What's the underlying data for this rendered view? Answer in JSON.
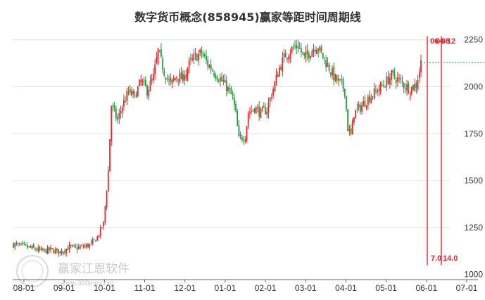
{
  "chart_data": {
    "type": "candlestick",
    "title": "数字货币概念(858945)赢家等距时间周期线",
    "xlabel": "",
    "ylabel": "",
    "ylim": [
      1020,
      2290
    ],
    "y_ticks": [
      1000,
      1250,
      1500,
      1750,
      2000,
      2250
    ],
    "y_tick_labels": [
      "1000",
      "1250",
      "1500",
      "1750",
      "2000",
      "2250"
    ],
    "x_tick_labels": [
      "08-01",
      "09-01",
      "10-01",
      "11-01",
      "12-01",
      "01-01",
      "02-01",
      "03-01",
      "04-01",
      "05-01",
      "06-01",
      "07-01"
    ],
    "grid": true,
    "colors": {
      "up": "#e8262d",
      "down": "#1f9a3a",
      "cycle_line": "#e8262d",
      "grid": "#e0e0e0"
    },
    "price_path": [
      [
        0,
        1160
      ],
      [
        6,
        1150
      ],
      [
        12,
        1140
      ],
      [
        18,
        1125
      ],
      [
        24,
        1130
      ],
      [
        30,
        1120
      ],
      [
        36,
        1145
      ],
      [
        40,
        1140
      ],
      [
        46,
        1150
      ],
      [
        50,
        1160
      ],
      [
        54,
        1200
      ],
      [
        58,
        1270
      ],
      [
        61,
        1550
      ],
      [
        63,
        1900
      ],
      [
        67,
        1820
      ],
      [
        70,
        1900
      ],
      [
        74,
        1970
      ],
      [
        78,
        1950
      ],
      [
        82,
        2030
      ],
      [
        86,
        1980
      ],
      [
        90,
        2050
      ],
      [
        93,
        2190
      ],
      [
        97,
        2080
      ],
      [
        101,
        2010
      ],
      [
        105,
        2060
      ],
      [
        109,
        2040
      ],
      [
        113,
        2120
      ],
      [
        117,
        2160
      ],
      [
        121,
        2180
      ],
      [
        125,
        2120
      ],
      [
        129,
        2080
      ],
      [
        133,
        2040
      ],
      [
        137,
        2000
      ],
      [
        141,
        1940
      ],
      [
        143,
        1850
      ],
      [
        145,
        1720
      ],
      [
        149,
        1740
      ],
      [
        151,
        1860
      ],
      [
        155,
        1890
      ],
      [
        159,
        1860
      ],
      [
        163,
        1880
      ],
      [
        167,
        1990
      ],
      [
        171,
        2100
      ],
      [
        175,
        2170
      ],
      [
        179,
        2200
      ],
      [
        183,
        2220
      ],
      [
        187,
        2150
      ],
      [
        191,
        2190
      ],
      [
        195,
        2220
      ],
      [
        199,
        2160
      ],
      [
        203,
        2100
      ],
      [
        207,
        2040
      ],
      [
        211,
        2010
      ],
      [
        213,
        1980
      ],
      [
        215,
        1780
      ],
      [
        217,
        1740
      ],
      [
        219,
        1860
      ],
      [
        223,
        1890
      ],
      [
        227,
        1930
      ],
      [
        231,
        1960
      ],
      [
        235,
        1990
      ],
      [
        239,
        2020
      ],
      [
        243,
        2060
      ],
      [
        247,
        2040
      ],
      [
        251,
        2010
      ],
      [
        255,
        1990
      ],
      [
        259,
        2010
      ],
      [
        262,
        2130
      ]
    ],
    "annotations": [
      {
        "type": "vertical-line",
        "label": "06-05",
        "cycle": "7.0"
      },
      {
        "type": "vertical-line",
        "label": "06-12",
        "cycle": "14.0"
      }
    ],
    "reference_line": {
      "style": "dashed",
      "value": 2130
    }
  },
  "watermark": {
    "text": "赢家江恩软件",
    "url": "www.360jnn.com"
  }
}
